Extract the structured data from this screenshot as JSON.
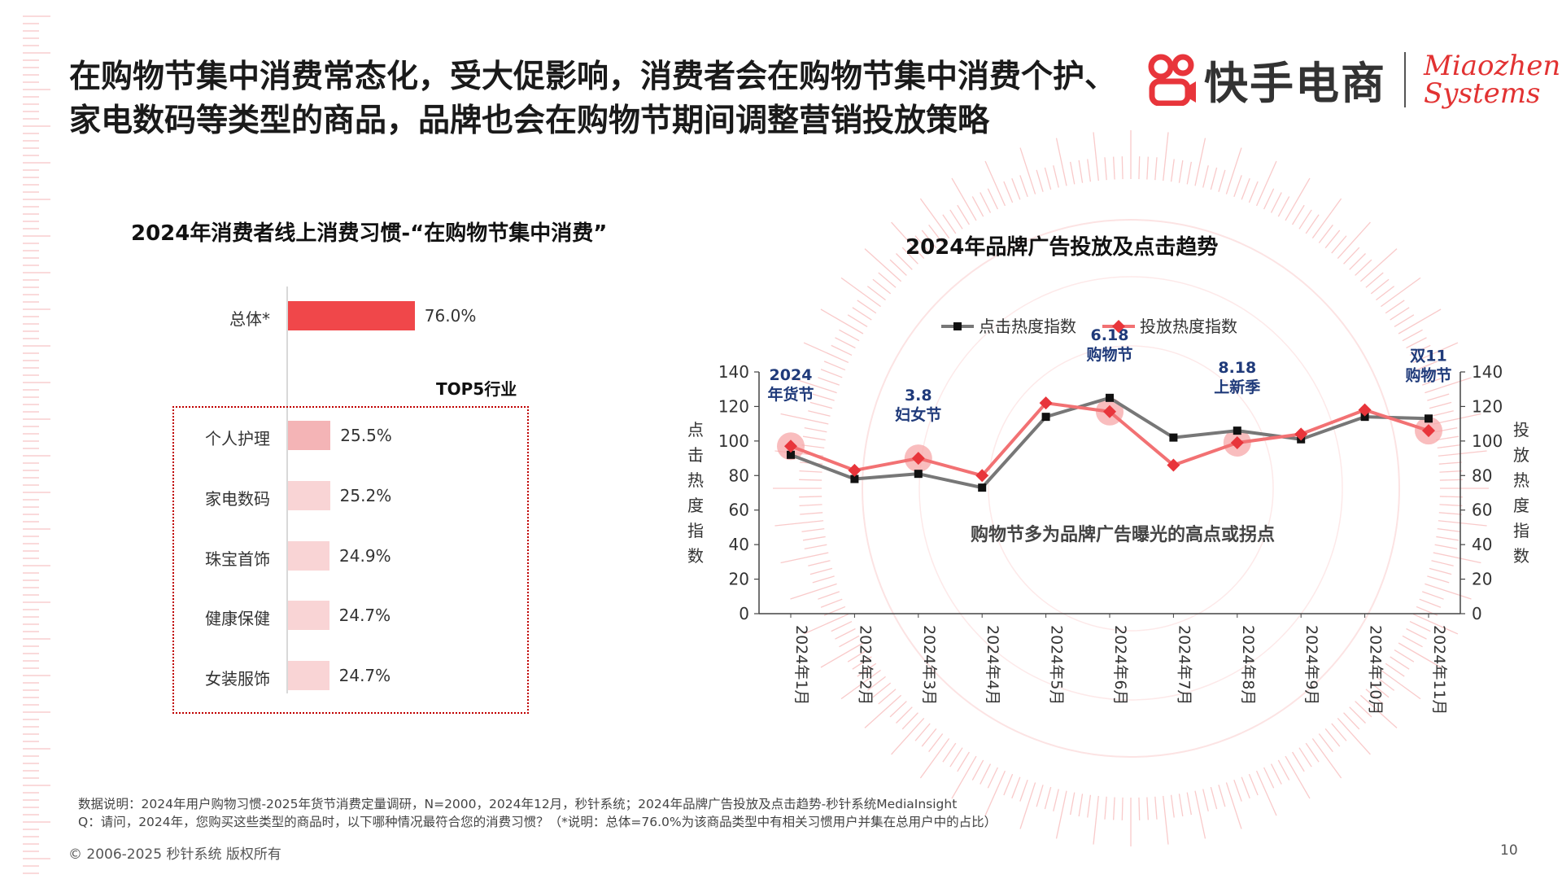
{
  "headline": [
    "在购物节集中消费常态化，受大促影响，消费者会在购物节集中消费个护、",
    "家电数码等类型的商品，品牌也会在购物节期间调整营销投放策略"
  ],
  "logo": {
    "brand_text": "快手电商",
    "partner_line1": "Miaozhen",
    "partner_line2": "Systems",
    "brand_color": "#e8353b"
  },
  "left_chart": {
    "title": "2024年消费者线上消费习惯-“在购物节集中消费”",
    "top5_label": "TOP5行业"
  },
  "right_chart": {
    "title": "2024年品牌广告投放及点击趋势",
    "left_axis_title": "点击热度指数",
    "right_axis_title": "投放热度指数",
    "annotation": "购物节多为品牌广告曝光的高点或拐点",
    "events": [
      {
        "line1": "2024",
        "line2": "年货节",
        "month_index": 0
      },
      {
        "line1": "3.8",
        "line2": "妇女节",
        "month_index": 2
      },
      {
        "line1": "6.18",
        "line2": "购物节",
        "month_index": 5
      },
      {
        "line1": "8.18",
        "line2": "上新季",
        "month_index": 7
      },
      {
        "line1": "双11",
        "line2": "购物节",
        "month_index": 10
      }
    ]
  },
  "chart_data": [
    {
      "type": "bar",
      "orientation": "horizontal",
      "title": "2024年消费者线上消费习惯-“在购物节集中消费”",
      "categories": [
        "总体*",
        "个人护理",
        "家电数码",
        "珠宝首饰",
        "健康保健",
        "女装服饰"
      ],
      "values": [
        76.0,
        25.5,
        25.2,
        24.9,
        24.7,
        24.7
      ],
      "value_labels": [
        "76.0%",
        "25.5%",
        "25.2%",
        "24.9%",
        "24.7%",
        "24.7%"
      ],
      "unit": "%",
      "colors": [
        "#f0474a",
        "#f4b4b6",
        "#f9d4d5",
        "#f9d4d5",
        "#f9d4d5",
        "#f9d4d5"
      ]
    },
    {
      "type": "line",
      "title": "2024年品牌广告投放及点击趋势",
      "x": [
        "2024年1月",
        "2024年2月",
        "2024年3月",
        "2024年4月",
        "2024年5月",
        "2024年6月",
        "2024年7月",
        "2024年8月",
        "2024年9月",
        "2024年10月",
        "2024年11月"
      ],
      "series": [
        {
          "name": "点击热度指数",
          "axis": "left",
          "color": "#777777",
          "marker_color": "#111111",
          "marker": "square",
          "values": [
            92,
            78,
            81,
            73,
            114,
            125,
            102,
            106,
            101,
            114,
            113
          ]
        },
        {
          "name": "投放热度指数",
          "axis": "right",
          "color": "#f27173",
          "marker_color": "#e8353b",
          "marker": "diamond",
          "values": [
            97,
            83,
            90,
            80,
            122,
            117,
            86,
            99,
            104,
            118,
            106
          ]
        }
      ],
      "ylim_left": [
        0,
        140
      ],
      "ylim_right": [
        0,
        140
      ],
      "yticks": [
        0,
        20,
        40,
        60,
        80,
        100,
        120,
        140
      ],
      "ylabel_left": "点击热度指数",
      "ylabel_right": "投放热度指数",
      "legend_position": "top",
      "grid": false
    }
  ],
  "footnotes": [
    "数据说明：2024年用户购物习惯-2025年货节消费定量调研，N=2000，2024年12月，秒针系统；2024年品牌广告投放及点击趋势-秒针系统MediaInsight",
    "Q：请问，2024年，您购买这些类型的商品时，以下哪种情况最符合您的消费习惯？（*说明：总体=76.0%为该商品类型中有相关习惯用户并集在总用户中的占比）"
  ],
  "copyright": "© 2006-2025 秒针系统 版权所有",
  "page_number": "10"
}
